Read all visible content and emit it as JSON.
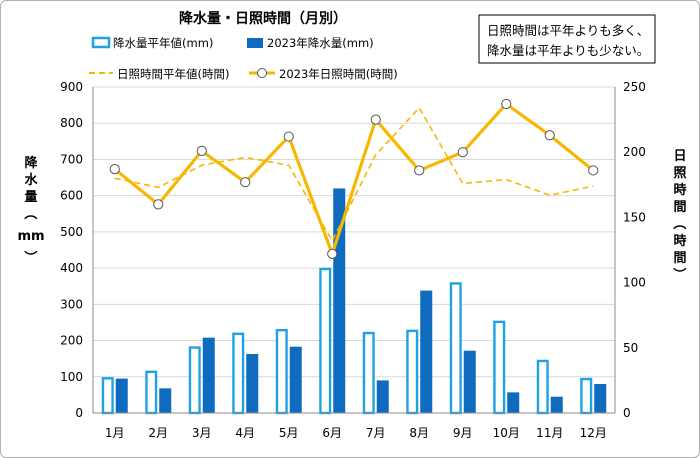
{
  "chart_data": {
    "type": "bar+line",
    "title": "降水量・日照時間（月別）",
    "categories": [
      "1月",
      "2月",
      "3月",
      "4月",
      "5月",
      "6月",
      "7月",
      "8月",
      "9月",
      "10月",
      "11月",
      "12月"
    ],
    "bar_series": [
      {
        "name": "降水量平年値(mm)",
        "color": "#1fa2e0",
        "style": "outline",
        "values": [
          99,
          117,
          184,
          222,
          232,
          401,
          224,
          230,
          361,
          255,
          147,
          97
        ]
      },
      {
        "name": "2023年降水量(mm)",
        "color": "#0f6bbf",
        "style": "filled",
        "values": [
          95,
          68,
          208,
          163,
          183,
          620,
          90,
          338,
          172,
          57,
          45,
          80
        ]
      }
    ],
    "line_series": [
      {
        "name": "日照時間平年値(時間)",
        "color": "#f6b800",
        "style": "dashed",
        "values": [
          180,
          173,
          190,
          196,
          190,
          132,
          198,
          234,
          176,
          179,
          167,
          174
        ]
      },
      {
        "name": "2023年日照時間(時間)",
        "color": "#f6b800",
        "style": "solid-markers",
        "values": [
          187,
          160,
          201,
          177,
          212,
          122,
          225,
          186,
          200,
          237,
          213,
          186
        ]
      }
    ],
    "y_left": {
      "label": "降水量（mm）",
      "min": 0,
      "max": 900,
      "ticks": [
        0,
        100,
        200,
        300,
        400,
        500,
        600,
        700,
        800,
        900
      ]
    },
    "y_right": {
      "label": "日照時間（時間）",
      "min": 0,
      "max": 250,
      "ticks": [
        0,
        50,
        100,
        150,
        200,
        250
      ]
    },
    "grid": "horizontal",
    "legend_position": "top",
    "annotation": [
      "日照時間は平年よりも多く、",
      "降水量は平年よりも少ない。"
    ]
  }
}
